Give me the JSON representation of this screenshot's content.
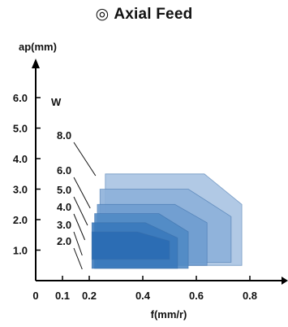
{
  "title_icon": "◎",
  "title_icon_name": "circle-dot-icon",
  "title": "Axial Feed",
  "chart_data": {
    "type": "area",
    "title": "Axial Feed",
    "xlabel": "f(mm/r)",
    "ylabel": "ap(mm)",
    "xlim": [
      0,
      1.0
    ],
    "ylim": [
      0,
      7.5
    ],
    "x_ticks": [
      "0",
      "0.1",
      "0.2",
      "0.4",
      "0.6",
      "0.8"
    ],
    "x_tick_values": [
      0,
      0.1,
      0.2,
      0.4,
      0.6,
      0.8
    ],
    "y_ticks": [
      "1.0",
      "2.0",
      "3.0",
      "4.0",
      "5.0",
      "6.0"
    ],
    "y_tick_values": [
      1,
      2,
      3,
      4,
      5,
      6
    ],
    "series_label_header": "W",
    "grid": false,
    "series": [
      {
        "name": "8.0",
        "polygon": [
          [
            0.26,
            0.5
          ],
          [
            0.77,
            0.5
          ],
          [
            0.77,
            2.5
          ],
          [
            0.63,
            3.5
          ],
          [
            0.26,
            3.5
          ]
        ],
        "color": "#a9c3e2"
      },
      {
        "name": "6.0",
        "polygon": [
          [
            0.24,
            0.6
          ],
          [
            0.73,
            0.6
          ],
          [
            0.73,
            2.1
          ],
          [
            0.57,
            3.0
          ],
          [
            0.24,
            3.0
          ]
        ],
        "color": "#8db0d9"
      },
      {
        "name": "5.0",
        "polygon": [
          [
            0.23,
            0.5
          ],
          [
            0.64,
            0.5
          ],
          [
            0.64,
            1.9
          ],
          [
            0.52,
            2.5
          ],
          [
            0.23,
            2.5
          ]
        ],
        "color": "#6f9ccf"
      },
      {
        "name": "4.0",
        "polygon": [
          [
            0.22,
            0.4
          ],
          [
            0.57,
            0.4
          ],
          [
            0.57,
            1.6
          ],
          [
            0.46,
            2.2
          ],
          [
            0.22,
            2.2
          ]
        ],
        "color": "#5089c4"
      },
      {
        "name": "3.0",
        "polygon": [
          [
            0.21,
            0.4
          ],
          [
            0.53,
            0.4
          ],
          [
            0.53,
            1.4
          ],
          [
            0.41,
            1.9
          ],
          [
            0.21,
            1.9
          ]
        ],
        "color": "#3a79bb"
      },
      {
        "name": "2.0",
        "polygon": [
          [
            0.21,
            0.7
          ],
          [
            0.5,
            0.7
          ],
          [
            0.5,
            1.3
          ],
          [
            0.38,
            1.6
          ],
          [
            0.21,
            1.6
          ]
        ],
        "color": "#2a6cb3"
      }
    ],
    "colors": {
      "axis": "#000000",
      "leader": "#111111",
      "region_edge": "#3b6ea8"
    }
  }
}
